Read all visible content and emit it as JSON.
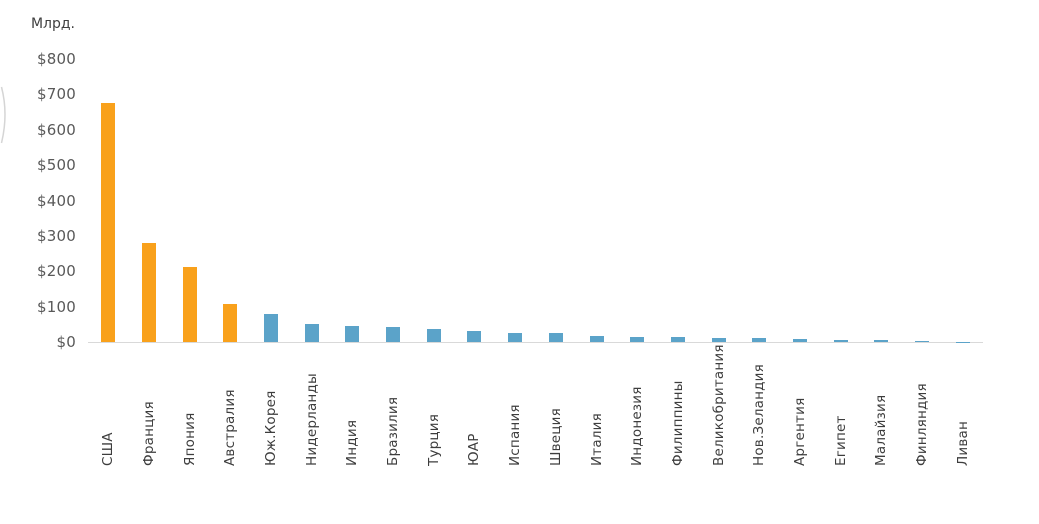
{
  "chart_data": {
    "type": "bar",
    "title": "",
    "ylabel": "Млрд.",
    "xlabel": "",
    "ylim": [
      0,
      800
    ],
    "grid": "off",
    "legend": "none",
    "yticks": [
      {
        "value": 0,
        "label": "$0"
      },
      {
        "value": 100,
        "label": "$100"
      },
      {
        "value": 200,
        "label": "$200"
      },
      {
        "value": 300,
        "label": "$300"
      },
      {
        "value": 400,
        "label": "$400"
      },
      {
        "value": 500,
        "label": "$500"
      },
      {
        "value": 600,
        "label": "$600"
      },
      {
        "value": 700,
        "label": "$700"
      },
      {
        "value": 800,
        "label": "$800"
      }
    ],
    "categories": [
      "США",
      "Франция",
      "Япония",
      "Австралия",
      "Юж.Корея",
      "Нидерланды",
      "Индия",
      "Бразилия",
      "Турция",
      "ЮАР",
      "Испания",
      "Швеция",
      "Италия",
      "Индонезия",
      "Филиппины",
      "Великобритания",
      "Нов.Зеландия",
      "Аргентия",
      "Египет",
      "Малайзия",
      "Финляндия",
      "Ливан"
    ],
    "values": [
      675,
      281,
      212,
      107,
      79,
      51,
      46,
      42,
      38,
      32,
      26,
      25,
      18,
      15,
      13,
      11,
      10,
      8,
      6,
      5,
      4,
      1
    ],
    "highlight_count": 4,
    "colors": {
      "highlight": "#F9A11B",
      "base": "#5BA3C9",
      "axis_line": "#D9D9D9",
      "tick_text": "#595959",
      "label_text": "#3D3D3D"
    }
  }
}
